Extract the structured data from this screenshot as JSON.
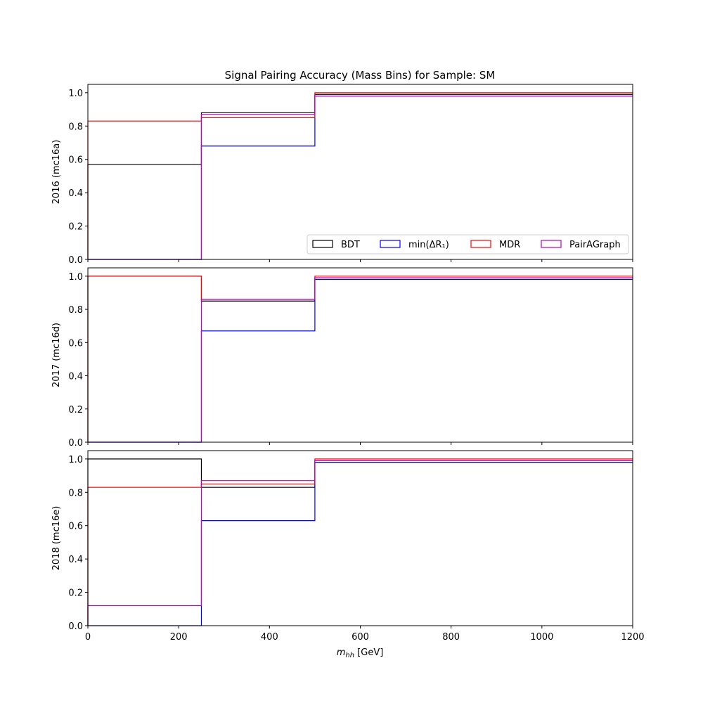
{
  "chart_data": {
    "type": "step",
    "title": "Signal Pairing Accuracy (Mass Bins) for Sample: SM",
    "xlabel_main": "m",
    "xlabel_sub": "hh",
    "xlabel_unit": " [GeV]",
    "xlim": [
      0,
      1200
    ],
    "ylim": [
      0,
      1.05
    ],
    "xticks": [
      0,
      200,
      400,
      600,
      800,
      1000,
      1200
    ],
    "yticks": [
      0.0,
      0.2,
      0.4,
      0.6,
      0.8,
      1.0
    ],
    "xtick_labels": [
      "0",
      "200",
      "400",
      "600",
      "800",
      "1000",
      "1200"
    ],
    "ytick_labels": [
      "0.0",
      "0.2",
      "0.4",
      "0.6",
      "0.8",
      "1.0"
    ],
    "bin_edges": [
      0,
      250,
      500,
      1200
    ],
    "legend": {
      "placement": "lower-right of top panel",
      "entries": [
        {
          "label": "BDT",
          "color": "#000000"
        },
        {
          "label": "min(ΔR₁)",
          "color": "#0000ff"
        },
        {
          "label": "MDR",
          "color": "#ff0000"
        },
        {
          "label": "PairAGraph",
          "color": "#bf00bf"
        }
      ]
    },
    "panels": [
      {
        "ylabel": "2016 (mc16a)",
        "series": [
          {
            "name": "BDT",
            "color": "#000000",
            "values": [
              0.57,
              0.88,
              0.99
            ]
          },
          {
            "name": "min(ΔR₁)",
            "color": "#0000ff",
            "values": [
              0.0,
              0.68,
              0.98
            ]
          },
          {
            "name": "MDR",
            "color": "#ff0000",
            "values": [
              0.83,
              0.85,
              1.0
            ]
          },
          {
            "name": "PairAGraph",
            "color": "#bf00bf",
            "values": [
              0.0,
              0.87,
              0.98
            ]
          }
        ]
      },
      {
        "ylabel": "2017 (mc16d)",
        "series": [
          {
            "name": "BDT",
            "color": "#000000",
            "values": [
              1.0,
              0.85,
              0.99
            ]
          },
          {
            "name": "min(ΔR₁)",
            "color": "#0000ff",
            "values": [
              0.0,
              0.67,
              0.98
            ]
          },
          {
            "name": "MDR",
            "color": "#ff0000",
            "values": [
              1.0,
              0.86,
              1.0
            ]
          },
          {
            "name": "PairAGraph",
            "color": "#bf00bf",
            "values": [
              0.0,
              0.86,
              0.99
            ]
          }
        ]
      },
      {
        "ylabel": "2018 (mc16e)",
        "series": [
          {
            "name": "BDT",
            "color": "#000000",
            "values": [
              1.0,
              0.83,
              0.99
            ]
          },
          {
            "name": "min(ΔR₁)",
            "color": "#0000ff",
            "values": [
              0.0,
              0.63,
              0.98
            ]
          },
          {
            "name": "MDR",
            "color": "#ff0000",
            "values": [
              0.83,
              0.85,
              1.0
            ]
          },
          {
            "name": "PairAGraph",
            "color": "#bf00bf",
            "values": [
              0.12,
              0.87,
              0.99
            ]
          }
        ]
      }
    ]
  }
}
